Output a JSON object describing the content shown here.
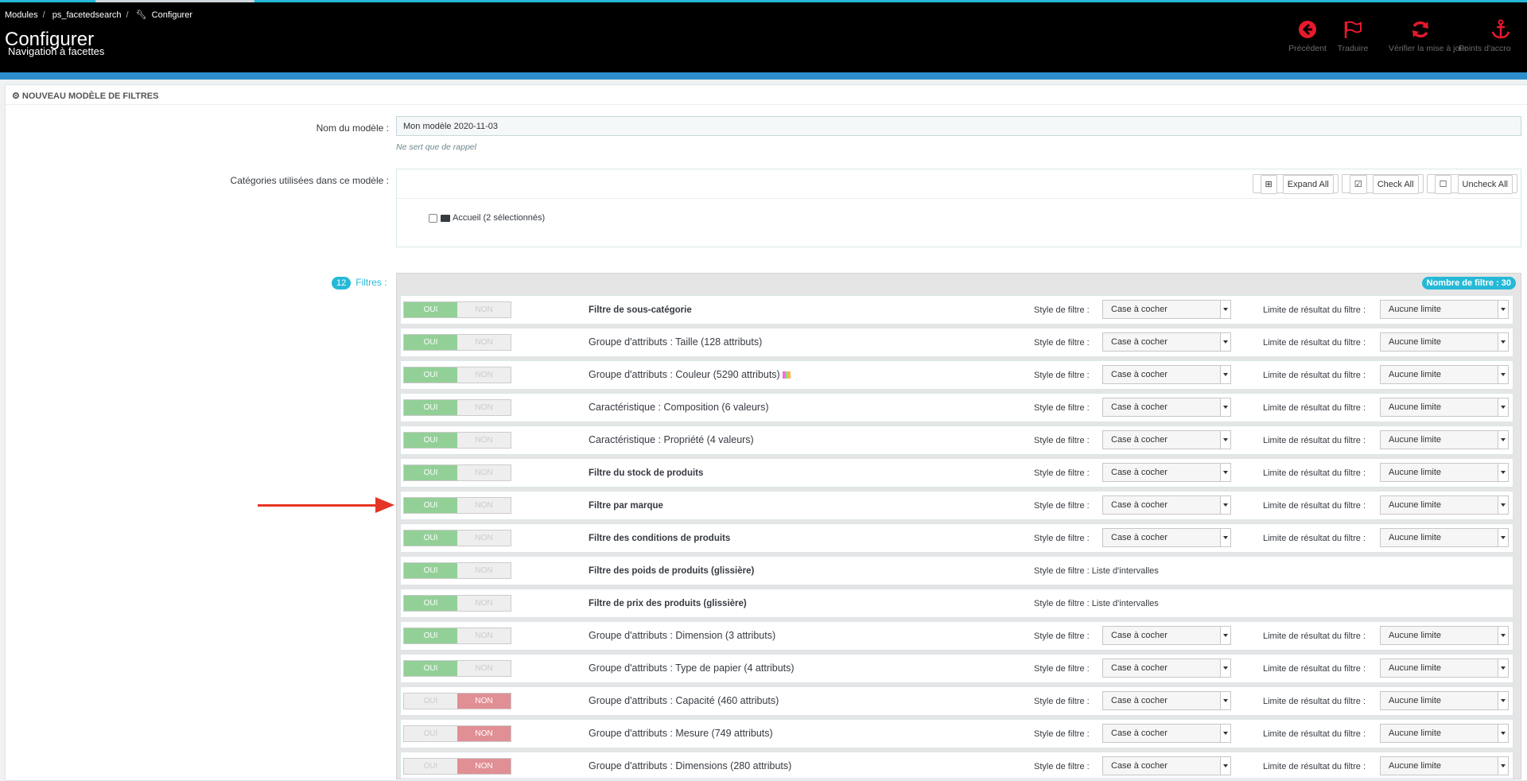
{
  "header": {
    "breadcrumb": [
      "Modules",
      "ps_facetedsearch",
      "Configurer"
    ],
    "title": "Configurer",
    "subtitle": "Navigation à facettes",
    "toolbar": [
      {
        "icon": "back-circle-icon",
        "label": "Précédent"
      },
      {
        "icon": "flag-icon",
        "label": "Traduire"
      },
      {
        "icon": "refresh-icon",
        "label": "Vérifier la mise à jour"
      },
      {
        "icon": "anchor-icon",
        "label": "Points d'accro"
      }
    ]
  },
  "panel": {
    "heading": "NOUVEAU MODÈLE DE FILTRES",
    "name_label": "Nom du modèle :",
    "name_value": "Mon modèle 2020-11-03",
    "name_help": "Ne sert que de rappel",
    "categories_label": "Catégories utilisées dans ce modèle :",
    "expand_all": "Expand All",
    "check_all": "Check All",
    "uncheck_all": "Uncheck All",
    "category_root": "Accueil (2 sélectionnés)",
    "filters_badge": "12",
    "filters_label": "Filtres :",
    "filter_count": "Nombre de filtre : 30"
  },
  "labels": {
    "yes": "OUI",
    "no": "NON",
    "style": "Style de filtre :",
    "limit": "Limite de résultat du filtre :"
  },
  "filters": [
    {
      "title": "Filtre de sous-catégorie",
      "bold": true,
      "enabled": true,
      "style": "Case à cocher",
      "limit": "Aucune limite"
    },
    {
      "title": "Groupe d'attributs : Taille (128 attributs)",
      "bold": false,
      "enabled": true,
      "style": "Case à cocher",
      "limit": "Aucune limite"
    },
    {
      "title": "Groupe d'attributs : Couleur (5290 attributs)",
      "bold": false,
      "enabled": true,
      "style": "Case à cocher",
      "limit": "Aucune limite",
      "swatch": true
    },
    {
      "title": "Caractéristique : Composition (6 valeurs)",
      "bold": false,
      "enabled": true,
      "style": "Case à cocher",
      "limit": "Aucune limite"
    },
    {
      "title": "Caractéristique : Propriété (4 valeurs)",
      "bold": false,
      "enabled": true,
      "style": "Case à cocher",
      "limit": "Aucune limite"
    },
    {
      "title": "Filtre du stock de produits",
      "bold": true,
      "enabled": true,
      "style": "Case à cocher",
      "limit": "Aucune limite"
    },
    {
      "title": "Filtre par marque",
      "bold": true,
      "enabled": true,
      "style": "Case à cocher",
      "limit": "Aucune limite"
    },
    {
      "title": "Filtre des conditions de produits",
      "bold": true,
      "enabled": true,
      "style": "Case à cocher",
      "limit": "Aucune limite"
    },
    {
      "title": "Filtre des poids de produits (glissière)",
      "bold": true,
      "enabled": true,
      "style_text": "Liste d'intervalles"
    },
    {
      "title": "Filtre de prix des produits (glissière)",
      "bold": true,
      "enabled": true,
      "style_text": "Liste d'intervalles"
    },
    {
      "title": "Groupe d'attributs : Dimension (3 attributs)",
      "bold": false,
      "enabled": true,
      "style": "Case à cocher",
      "limit": "Aucune limite"
    },
    {
      "title": "Groupe d'attributs : Type de papier (4 attributs)",
      "bold": false,
      "enabled": true,
      "style": "Case à cocher",
      "limit": "Aucune limite"
    },
    {
      "title": "Groupe d'attributs : Capacité (460 attributs)",
      "bold": false,
      "enabled": false,
      "style": "Case à cocher",
      "limit": "Aucune limite"
    },
    {
      "title": "Groupe d'attributs : Mesure (749 attributs)",
      "bold": false,
      "enabled": false,
      "style": "Case à cocher",
      "limit": "Aucune limite"
    },
    {
      "title": "Groupe d'attributs : Dimensions (280 attributs)",
      "bold": false,
      "enabled": false,
      "style": "Case à cocher",
      "limit": "Aucune limite"
    }
  ],
  "colors": {
    "accent": "#25b9d7",
    "toolbar_icon": "#e8192c",
    "switch_on": "#92d097",
    "switch_off": "#e08f95",
    "annotation_arrow": "#e53524"
  }
}
